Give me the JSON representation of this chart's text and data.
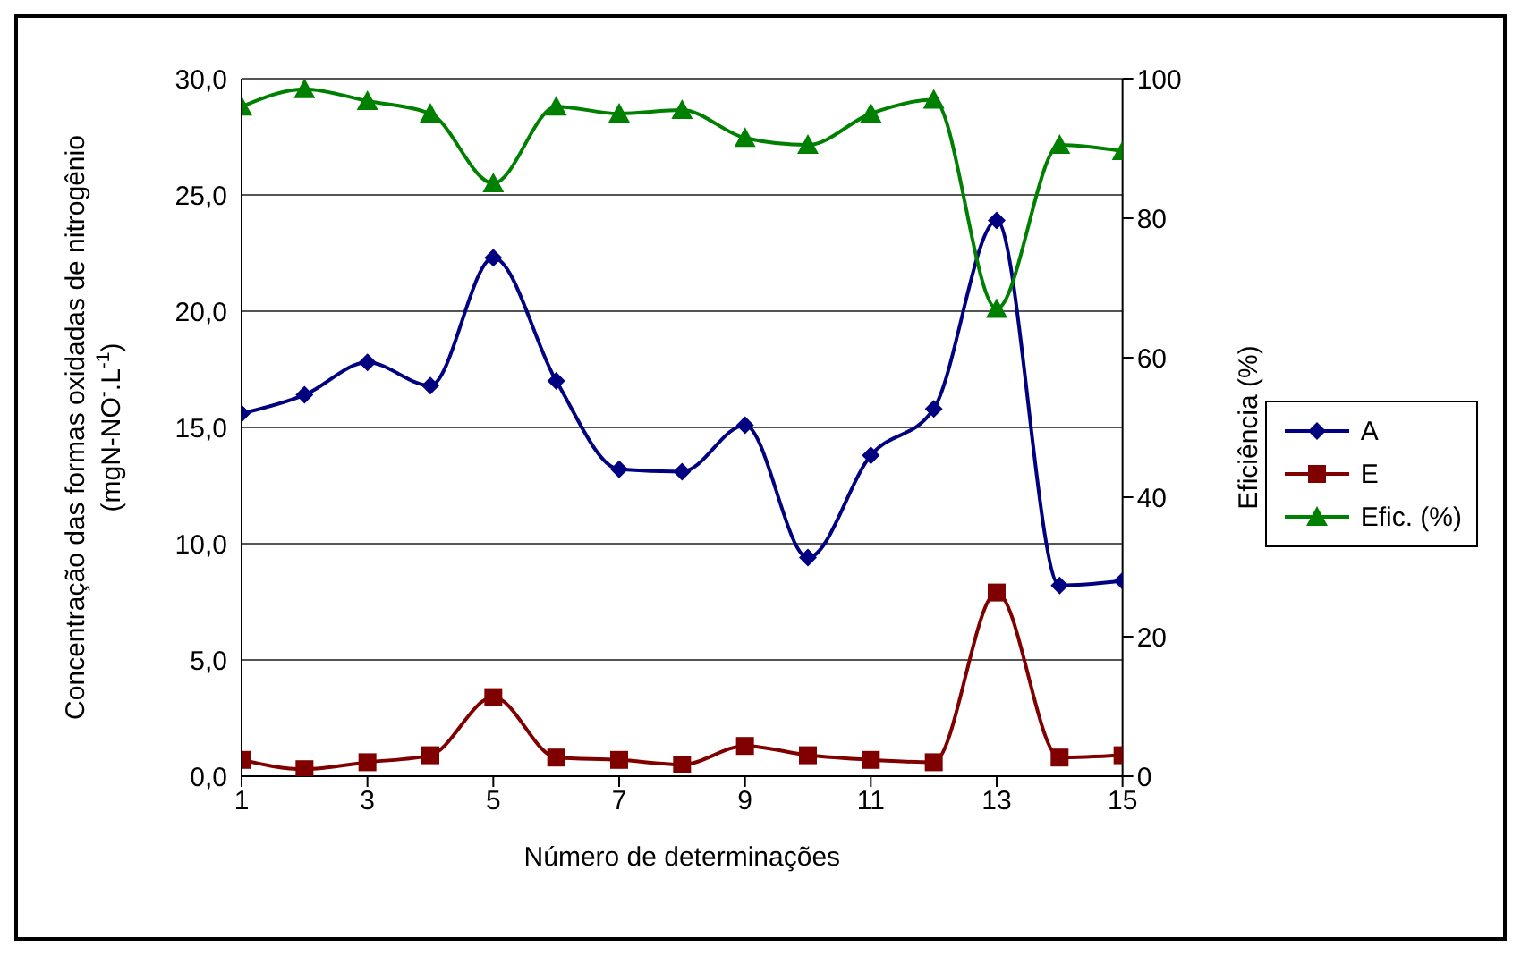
{
  "chart_data": {
    "type": "line",
    "xlabel": "Número de determinações",
    "ylabel": "Concentração das formas oxidadas de nitrogênio (mgN-NO$^{-}$.L$^{-1}$)",
    "y2label": "Eficiência (%)",
    "x": [
      1,
      2,
      3,
      4,
      5,
      6,
      7,
      8,
      9,
      10,
      11,
      12,
      13,
      14,
      15
    ],
    "xlim": [
      1,
      15
    ],
    "xticks": [
      1,
      3,
      5,
      7,
      9,
      11,
      13,
      15
    ],
    "ylim": [
      0,
      30
    ],
    "yticks": [
      {
        "value": 0,
        "label": "0,0"
      },
      {
        "value": 5,
        "label": "5,0"
      },
      {
        "value": 10,
        "label": "10,0"
      },
      {
        "value": 15,
        "label": "15,0"
      },
      {
        "value": 20,
        "label": "20,0"
      },
      {
        "value": 25,
        "label": "25,0"
      },
      {
        "value": 30,
        "label": "30,0"
      }
    ],
    "y2lim": [
      0,
      100
    ],
    "y2ticks": [
      0,
      20,
      40,
      60,
      80,
      100
    ],
    "grid": "y",
    "legend": "right",
    "series": [
      {
        "name": "A",
        "color": "#000080",
        "marker": "diamond",
        "values": [
          15.6,
          16.4,
          17.8,
          16.8,
          22.3,
          17.0,
          13.2,
          13.1,
          15.1,
          9.4,
          13.8,
          15.8,
          23.9,
          8.2,
          8.4
        ]
      },
      {
        "name": "E",
        "color": "#800000",
        "marker": "square",
        "values": [
          0.7,
          0.3,
          0.6,
          0.9,
          3.4,
          0.8,
          0.7,
          0.5,
          1.3,
          0.9,
          0.7,
          0.6,
          7.9,
          0.8,
          0.9
        ]
      },
      {
        "name": "Efic. (%)",
        "color": "#008000",
        "marker": "triangle",
        "axis": "y2",
        "values": [
          96,
          98.5,
          96.8,
          95,
          85,
          96,
          95,
          95.5,
          91.5,
          90.5,
          95,
          97,
          67,
          90.5,
          89.6
        ]
      }
    ]
  }
}
